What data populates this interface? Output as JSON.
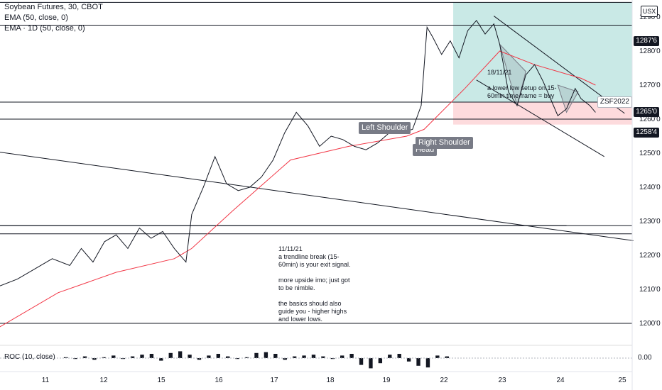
{
  "header": {
    "symbol": "Soybean Futures, 30, CBOT",
    "indicator_1": "EMA (50, close, 0)",
    "indicator_2": "EMA · 1D (50, close, 0)",
    "currency": "USX"
  },
  "pattern_labels": {
    "left_shoulder": "Left Shoulder",
    "head": "Head",
    "right_shoulder": "Right Shoulder"
  },
  "notes": {
    "top": "18/11/21\n\na lower low setup on 15-\n60min time frame = buy",
    "bottom": "11/11/21\na trendline break (15-\n60min) is your exit signal.\n\nmore upside imo; just got\nto be nimble.\n\nthe basics should also\nguide you - higher highs\nand lower lows."
  },
  "price_tags": {
    "resistance": "1287'6",
    "symbol_tag": "ZSF2022",
    "current": "1265'0",
    "support": "1258'4"
  },
  "indicator_pane": {
    "label": "ROC (10, close)",
    "zero_label": "0.00"
  },
  "chart_data": {
    "type": "line",
    "title": "Soybean Futures, 30, CBOT",
    "x_tick_labels": [
      "11",
      "12",
      "15",
      "16",
      "17",
      "18",
      "19",
      "22",
      "23",
      "24",
      "25"
    ],
    "y_tick_labels": [
      "1290'0",
      "1280'0",
      "1270'0",
      "1260'0",
      "1250'0",
      "1240'0",
      "1230'0",
      "1220'0",
      "1210'0",
      "1200'0"
    ],
    "ylim": [
      1195,
      1295
    ],
    "price_series": {
      "name": "Soybean Futures",
      "points": [
        [
          0,
          1211
        ],
        [
          0.3,
          1213
        ],
        [
          0.6,
          1216
        ],
        [
          0.9,
          1219
        ],
        [
          1.2,
          1217
        ],
        [
          1.4,
          1222
        ],
        [
          1.6,
          1218
        ],
        [
          1.8,
          1224
        ],
        [
          2.0,
          1226
        ],
        [
          2.2,
          1222
        ],
        [
          2.4,
          1228
        ],
        [
          2.6,
          1225
        ],
        [
          2.8,
          1227
        ],
        [
          3.0,
          1222
        ],
        [
          3.2,
          1218
        ],
        [
          3.3,
          1232
        ],
        [
          3.5,
          1240
        ],
        [
          3.7,
          1249
        ],
        [
          3.9,
          1241
        ],
        [
          4.1,
          1239
        ],
        [
          4.3,
          1240
        ],
        [
          4.5,
          1243
        ],
        [
          4.7,
          1248
        ],
        [
          4.9,
          1256
        ],
        [
          5.1,
          1262
        ],
        [
          5.3,
          1258
        ],
        [
          5.5,
          1252
        ],
        [
          5.7,
          1255
        ],
        [
          5.9,
          1254
        ],
        [
          6.1,
          1252
        ],
        [
          6.3,
          1251
        ],
        [
          6.5,
          1253
        ],
        [
          6.7,
          1256
        ],
        [
          6.9,
          1256
        ],
        [
          7.1,
          1257
        ],
        [
          7.25,
          1264
        ],
        [
          7.35,
          1287
        ],
        [
          7.45,
          1284
        ],
        [
          7.6,
          1279
        ],
        [
          7.75,
          1283
        ],
        [
          7.9,
          1278
        ],
        [
          8.05,
          1286
        ],
        [
          8.2,
          1289
        ],
        [
          8.35,
          1285
        ],
        [
          8.5,
          1288
        ],
        [
          8.6,
          1282
        ],
        [
          8.75,
          1268
        ],
        [
          8.9,
          1264
        ],
        [
          9.05,
          1273
        ],
        [
          9.2,
          1276
        ],
        [
          9.35,
          1271
        ],
        [
          9.5,
          1265
        ],
        [
          9.6,
          1261
        ],
        [
          9.75,
          1263
        ],
        [
          9.9,
          1269
        ],
        [
          10.0,
          1266
        ],
        [
          10.15,
          1264
        ],
        [
          10.25,
          1262
        ]
      ]
    },
    "ema_series": {
      "name": "EMA (50, close, 0)",
      "points": [
        [
          0,
          1199
        ],
        [
          1.0,
          1209
        ],
        [
          2.0,
          1215
        ],
        [
          3.0,
          1219
        ],
        [
          3.3,
          1222
        ],
        [
          4.0,
          1233
        ],
        [
          5.0,
          1248
        ],
        [
          6.0,
          1252
        ],
        [
          7.0,
          1255
        ],
        [
          7.3,
          1257
        ],
        [
          8.0,
          1269
        ],
        [
          8.6,
          1280
        ],
        [
          9.2,
          1276
        ],
        [
          10.0,
          1272
        ],
        [
          10.25,
          1270
        ]
      ]
    },
    "horizontal_lines": [
      1294.3,
      1287.6,
      1265.0,
      1260.0,
      1228.7,
      1226.3,
      1200.0
    ],
    "trendlines": [
      {
        "from": [
          0,
          1250.3
        ],
        "to": [
          10.9,
          1224.3
        ]
      },
      {
        "from": [
          8.5,
          1290.3
        ],
        "to": [
          10.75,
          1261.7
        ]
      },
      {
        "from": [
          8.2,
          1271.5
        ],
        "to": [
          10.4,
          1249
        ]
      },
      {
        "from": [
          0,
          1228.7
        ],
        "to": [
          9.75,
          1228.7
        ]
      }
    ],
    "zones": [
      {
        "kind": "target",
        "x": [
          7.8,
          10.9
        ],
        "y": [
          1265.0,
          1294.3
        ]
      },
      {
        "kind": "stop",
        "x": [
          7.8,
          10.9
        ],
        "y": [
          1258.4,
          1265.0
        ]
      }
    ],
    "roc": {
      "name": "ROC (10, close)",
      "zero": 0.0,
      "values": [
        0.1,
        -0.1,
        0.2,
        -0.2,
        0.1,
        0.3,
        -0.1,
        0.2,
        0.4,
        0.5,
        -0.3,
        0.6,
        0.8,
        0.4,
        -0.2,
        0.3,
        0.5,
        0.2,
        -0.1,
        0.1,
        0.6,
        0.7,
        0.5,
        -0.2,
        0.2,
        0.3,
        0.4,
        0.2,
        -0.1,
        0.3,
        0.5,
        -0.8,
        -1.2,
        -0.6,
        0.4,
        0.5,
        -0.4,
        -0.9,
        -1.1,
        0.3,
        0.2
      ]
    }
  }
}
